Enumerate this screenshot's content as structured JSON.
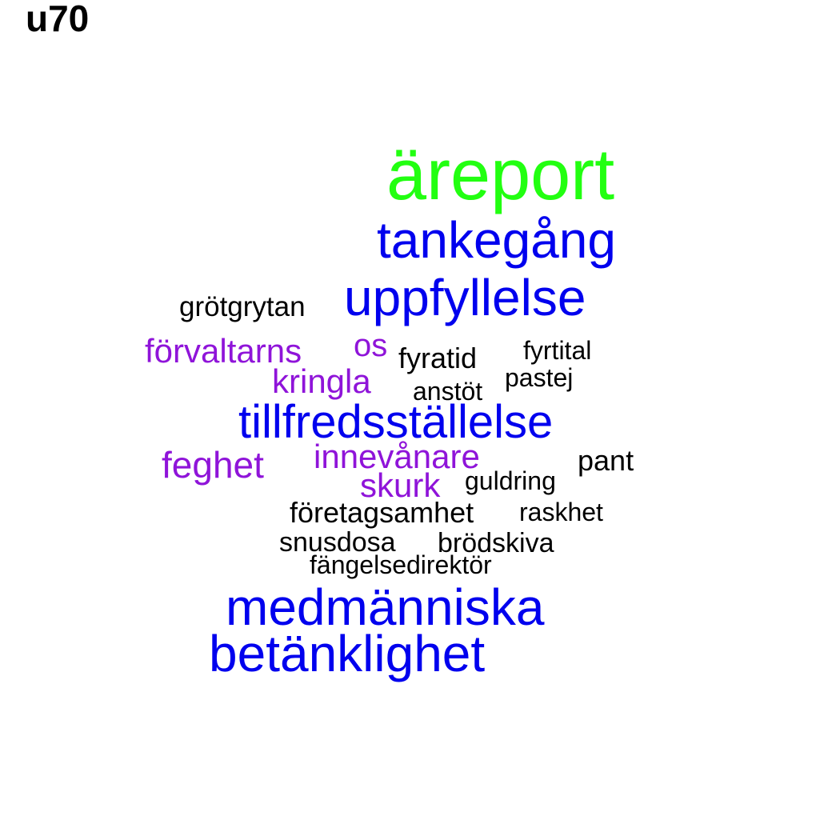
{
  "title": "u70",
  "colors": {
    "green": "#22ff11",
    "blue": "#0000ee",
    "purple": "#8f14d9",
    "black": "#000000"
  },
  "words": [
    {
      "text": "äreport",
      "color": "green"
    },
    {
      "text": "tankegång",
      "color": "blue"
    },
    {
      "text": "grötgrytan",
      "color": "black"
    },
    {
      "text": "uppfyllelse",
      "color": "blue"
    },
    {
      "text": "förvaltarns",
      "color": "purple"
    },
    {
      "text": "os",
      "color": "purple"
    },
    {
      "text": "fyratid",
      "color": "black"
    },
    {
      "text": "fyrtital",
      "color": "black"
    },
    {
      "text": "kringla",
      "color": "purple"
    },
    {
      "text": "pastej",
      "color": "black"
    },
    {
      "text": "anstöt",
      "color": "black"
    },
    {
      "text": "tillfredsställelse",
      "color": "blue"
    },
    {
      "text": "feghet",
      "color": "purple"
    },
    {
      "text": "innevånare",
      "color": "purple"
    },
    {
      "text": "pant",
      "color": "black"
    },
    {
      "text": "skurk",
      "color": "purple"
    },
    {
      "text": "guldring",
      "color": "black"
    },
    {
      "text": "företagsamhet",
      "color": "black"
    },
    {
      "text": "raskhet",
      "color": "black"
    },
    {
      "text": "snusdosa",
      "color": "black"
    },
    {
      "text": "brödskiva",
      "color": "black"
    },
    {
      "text": "fängelsedirektör",
      "color": "black"
    },
    {
      "text": "medmänniska",
      "color": "blue"
    },
    {
      "text": "betänklighet",
      "color": "blue"
    }
  ]
}
